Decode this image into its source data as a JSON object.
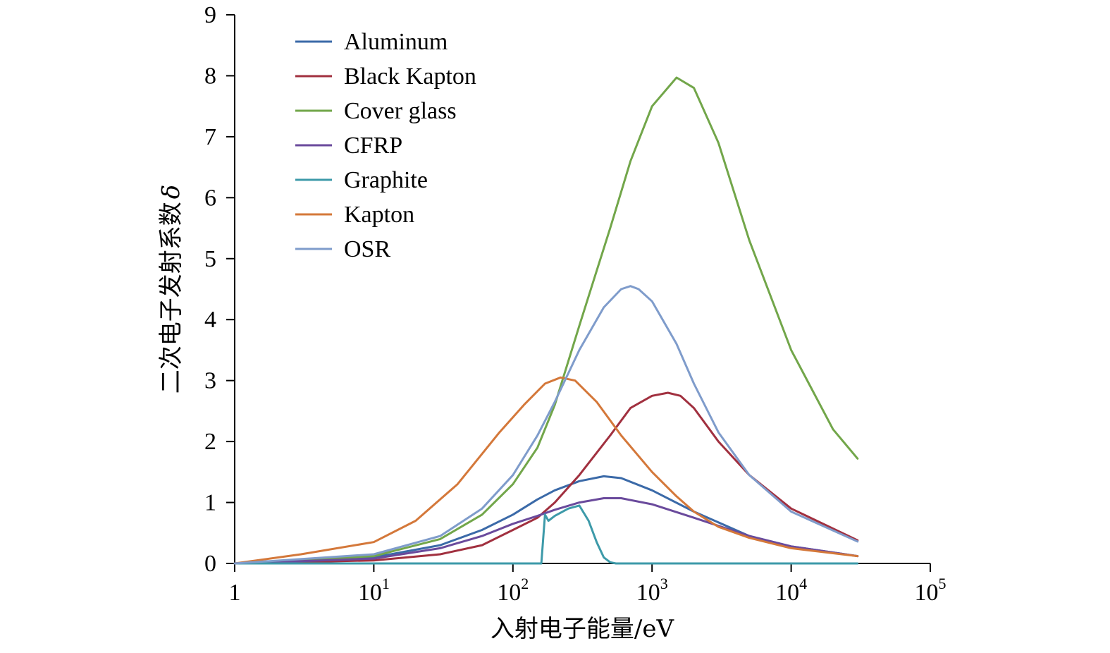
{
  "chart_data": {
    "type": "line",
    "title": "",
    "xlabel": "入射电子能量/eV",
    "ylabel_main": "二次电子发射系数",
    "ylabel_symbol": "δ",
    "x_scale": "log",
    "xlim": [
      1,
      100000
    ],
    "ylim": [
      0,
      9
    ],
    "x_ticks": [
      {
        "base": "1",
        "exp": ""
      },
      {
        "base": "10",
        "exp": "1"
      },
      {
        "base": "10",
        "exp": "2"
      },
      {
        "base": "10",
        "exp": "3"
      },
      {
        "base": "10",
        "exp": "4"
      },
      {
        "base": "10",
        "exp": "5"
      }
    ],
    "y_ticks": [
      "0",
      "1",
      "2",
      "3",
      "4",
      "5",
      "6",
      "7",
      "8",
      "9"
    ],
    "legend_position": "top-left",
    "grid": false,
    "series": [
      {
        "name": "Aluminum",
        "color": "#3b6aa8",
        "x": [
          1,
          3,
          10,
          30,
          60,
          100,
          150,
          200,
          300,
          450,
          600,
          1000,
          2000,
          5000,
          10000,
          30000
        ],
        "y": [
          0,
          0.03,
          0.1,
          0.3,
          0.55,
          0.8,
          1.05,
          1.2,
          1.35,
          1.43,
          1.4,
          1.2,
          0.85,
          0.45,
          0.28,
          0.12
        ]
      },
      {
        "name": "Black Kapton",
        "color": "#a1303f",
        "x": [
          1,
          10,
          30,
          60,
          100,
          150,
          200,
          300,
          500,
          700,
          1000,
          1300,
          1600,
          2000,
          3000,
          5000,
          10000,
          30000
        ],
        "y": [
          0,
          0.05,
          0.15,
          0.3,
          0.55,
          0.75,
          1.0,
          1.45,
          2.1,
          2.55,
          2.75,
          2.8,
          2.75,
          2.55,
          2.0,
          1.45,
          0.9,
          0.38
        ]
      },
      {
        "name": "Cover glass",
        "color": "#72a64a",
        "x": [
          1,
          10,
          30,
          60,
          100,
          150,
          200,
          300,
          400,
          500,
          700,
          1000,
          1500,
          2000,
          3000,
          5000,
          10000,
          20000,
          30000
        ],
        "y": [
          0,
          0.12,
          0.4,
          0.8,
          1.3,
          1.9,
          2.6,
          3.9,
          4.8,
          5.5,
          6.6,
          7.5,
          7.97,
          7.8,
          6.9,
          5.3,
          3.5,
          2.2,
          1.72
        ]
      },
      {
        "name": "CFRP",
        "color": "#6a4a9c",
        "x": [
          1,
          10,
          30,
          60,
          100,
          150,
          200,
          300,
          450,
          600,
          1000,
          2000,
          5000,
          10000,
          30000
        ],
        "y": [
          0,
          0.08,
          0.25,
          0.45,
          0.65,
          0.78,
          0.88,
          1.0,
          1.07,
          1.07,
          0.97,
          0.75,
          0.45,
          0.28,
          0.12
        ]
      },
      {
        "name": "Graphite",
        "color": "#3d9aa9",
        "x": [
          1,
          100,
          160,
          170,
          180,
          200,
          250,
          300,
          350,
          400,
          450,
          500,
          550,
          1000,
          10000,
          30000
        ],
        "y": [
          0,
          0,
          0,
          0.8,
          0.7,
          0.78,
          0.9,
          0.95,
          0.7,
          0.35,
          0.1,
          0.02,
          0,
          0,
          0,
          0
        ]
      },
      {
        "name": "Kapton",
        "color": "#d4783a",
        "x": [
          1,
          3,
          10,
          20,
          40,
          80,
          120,
          170,
          220,
          280,
          400,
          600,
          1000,
          1500,
          2000,
          3000,
          5000,
          10000,
          30000
        ],
        "y": [
          0,
          0.15,
          0.35,
          0.7,
          1.3,
          2.15,
          2.6,
          2.95,
          3.05,
          3.0,
          2.65,
          2.1,
          1.5,
          1.1,
          0.85,
          0.6,
          0.42,
          0.25,
          0.12
        ]
      },
      {
        "name": "OSR",
        "color": "#7f9ccb",
        "x": [
          1,
          10,
          30,
          60,
          100,
          150,
          200,
          300,
          450,
          600,
          700,
          800,
          1000,
          1500,
          2000,
          3000,
          5000,
          10000,
          30000
        ],
        "y": [
          0,
          0.15,
          0.45,
          0.9,
          1.45,
          2.1,
          2.65,
          3.5,
          4.2,
          4.5,
          4.55,
          4.5,
          4.3,
          3.6,
          2.95,
          2.15,
          1.45,
          0.85,
          0.36
        ]
      }
    ]
  }
}
